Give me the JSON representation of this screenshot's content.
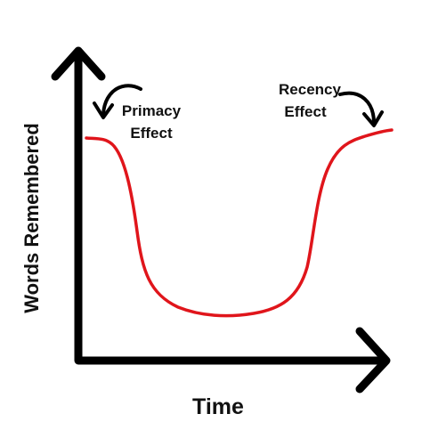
{
  "axes": {
    "x_label": "Time",
    "y_label": "Words Remembered"
  },
  "annotations": [
    {
      "lines": [
        "Primacy",
        "Effect"
      ]
    },
    {
      "lines": [
        "Recency",
        "Effect"
      ]
    }
  ]
}
